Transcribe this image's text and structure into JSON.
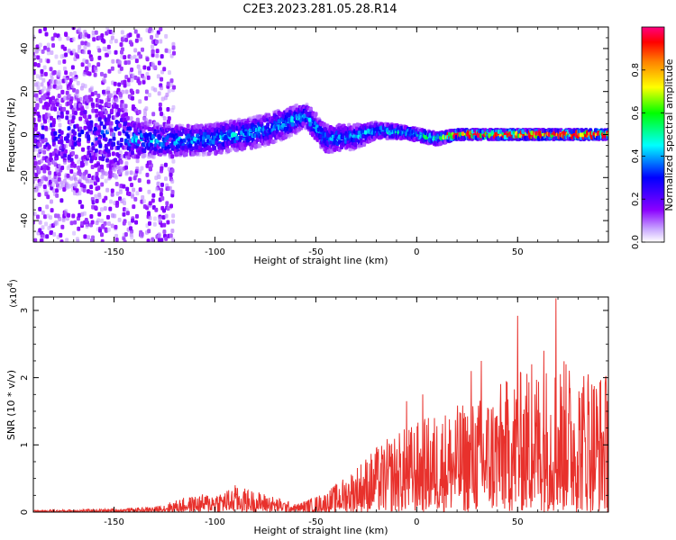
{
  "title": "C2E3.2023.281.05.28.R14",
  "chart_data": [
    {
      "type": "heatmap",
      "xlabel": "Height of straight line (km)",
      "ylabel": "Frequency (Hz)",
      "xlim": [
        -190,
        95
      ],
      "ylim": [
        -50,
        50
      ],
      "x_ticks": [
        "-150",
        "-100",
        "-50",
        "0",
        "50"
      ],
      "y_ticks": [
        "-40",
        "-20",
        "0",
        "20",
        "40"
      ],
      "colorbar": {
        "label": "Normalized spectral amplitude",
        "ticks": [
          "0.0",
          "0.2",
          "0.4",
          "0.6",
          "0.8"
        ],
        "range": [
          0,
          1
        ],
        "colormap": [
          "#ffffff",
          "#8a00ff",
          "#0000ff",
          "#00ffff",
          "#00ff00",
          "#ffff00",
          "#ff8000",
          "#ff0000",
          "#ff0080"
        ]
      },
      "ridge": [
        {
          "x": -190,
          "f": 0,
          "width": 40,
          "amp": 0.25
        },
        {
          "x": -150,
          "f": 0,
          "width": 30,
          "amp": 0.35
        },
        {
          "x": -140,
          "f": -2,
          "width": 12,
          "amp": 0.45
        },
        {
          "x": -120,
          "f": -3,
          "width": 10,
          "amp": 0.45
        },
        {
          "x": -100,
          "f": -2,
          "width": 10,
          "amp": 0.45
        },
        {
          "x": -80,
          "f": 1,
          "width": 10,
          "amp": 0.45
        },
        {
          "x": -65,
          "f": 5,
          "width": 10,
          "amp": 0.45
        },
        {
          "x": -55,
          "f": 9,
          "width": 8,
          "amp": 0.45
        },
        {
          "x": -45,
          "f": -2,
          "width": 9,
          "amp": 0.45
        },
        {
          "x": -30,
          "f": -1,
          "width": 8,
          "amp": 0.45
        },
        {
          "x": -20,
          "f": 2,
          "width": 5,
          "amp": 0.5
        },
        {
          "x": -5,
          "f": 1,
          "width": 4,
          "amp": 0.55
        },
        {
          "x": 10,
          "f": -2,
          "width": 4,
          "amp": 0.6
        },
        {
          "x": 20,
          "f": 0,
          "width": 3,
          "amp": 0.85
        },
        {
          "x": 50,
          "f": 0,
          "width": 3,
          "amp": 0.9
        },
        {
          "x": 95,
          "f": 0,
          "width": 3,
          "amp": 0.9
        }
      ]
    },
    {
      "type": "line",
      "xlabel": "Height of straight line (km)",
      "ylabel": "SNR (10 * v/v)",
      "y_multiplier": "(x10",
      "y_multiplier_exp": "4",
      "xlim": [
        -190,
        95
      ],
      "ylim": [
        0,
        3.2
      ],
      "x_ticks": [
        "-150",
        "-100",
        "-50",
        "0",
        "50"
      ],
      "y_ticks": [
        "0",
        "1",
        "2",
        "3"
      ],
      "color": "#e8312c",
      "envelope": {
        "x": [
          -190,
          -150,
          -130,
          -115,
          -100,
          -88,
          -75,
          -60,
          -45,
          -35,
          -25,
          -10,
          10,
          30,
          50,
          70,
          95
        ],
        "max": [
          0.03,
          0.05,
          0.08,
          0.22,
          0.3,
          0.38,
          0.28,
          0.12,
          0.3,
          0.55,
          0.85,
          1.2,
          1.5,
          1.7,
          2.1,
          2.3,
          2.1
        ]
      },
      "peaks": [
        {
          "x": -90,
          "y": 0.4
        },
        {
          "x": -20,
          "y": 0.95
        },
        {
          "x": -5,
          "y": 1.65
        },
        {
          "x": 3,
          "y": 1.75
        },
        {
          "x": 27,
          "y": 2.1
        },
        {
          "x": 32,
          "y": 2.25
        },
        {
          "x": 50,
          "y": 2.92
        },
        {
          "x": 57,
          "y": 2.2
        },
        {
          "x": 63,
          "y": 2.4
        },
        {
          "x": 69,
          "y": 3.18
        },
        {
          "x": 74,
          "y": 2.2
        },
        {
          "x": 85,
          "y": 2.05
        },
        {
          "x": 95,
          "y": 2.05
        }
      ]
    }
  ]
}
